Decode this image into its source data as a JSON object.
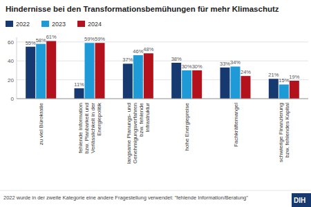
{
  "chart_data": {
    "type": "bar",
    "title": "Hindernisse bei den Transformationsbemühungen für mehr Klimaschutz",
    "categories": [
      "zu viel Bürokratie",
      "fehlende Information bzw. Planbarkeit und Verlässlichkeit in der Energiepolitik",
      "langsame Planungs- und Genehmigungsverfahren bzw. fehlende Infrastruktur",
      "hohe Energiepreise",
      "Fachkräftemangel",
      "schwierige Finanzierung bzw. fehlendes Kapital"
    ],
    "series": [
      {
        "name": "2022",
        "color": "#163a70",
        "values": [
          55,
          11,
          37,
          38,
          33,
          21
        ],
        "value_labels": [
          "55%",
          "11%",
          "37%",
          "38%",
          "33%",
          "21%"
        ]
      },
      {
        "name": "2023",
        "color": "#1e9bd7",
        "values": [
          58,
          59,
          46,
          30,
          34,
          15
        ],
        "value_labels": [
          "58%",
          "59%",
          "46%",
          "30%",
          "34%",
          "15%"
        ]
      },
      {
        "name": "2024",
        "color": "#b3121c",
        "values": [
          61,
          59,
          48,
          30,
          24,
          19
        ],
        "value_labels": [
          "61%",
          "59%",
          "48%",
          "30%",
          "24%",
          "19%"
        ]
      }
    ],
    "ylim": [
      0,
      65
    ],
    "yticks": [
      0,
      20,
      40,
      60
    ],
    "grid": true,
    "legend": "top-left",
    "data_labels": true,
    "footnote": "2022 wurde in der zweite Kategorie eine andere Fragestellung verwendet: \"fehlende Information/Beratung\"",
    "logo": "DIH"
  }
}
